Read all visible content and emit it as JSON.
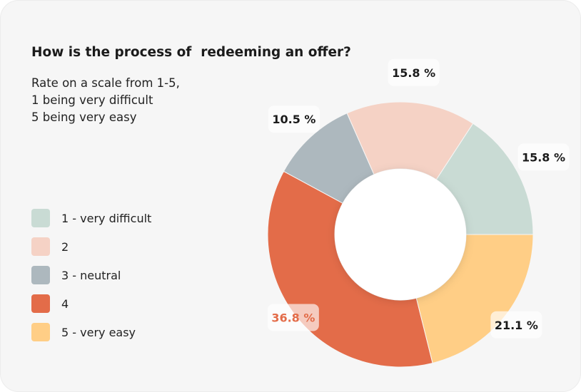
{
  "question": "How is the process of  redeeming an offer?",
  "instructions": [
    "Rate on a scale from 1-5,",
    "1 being very difficult",
    "5 being very easy"
  ],
  "chart_data": {
    "type": "pie",
    "donut": true,
    "title": "How is the process of  redeeming an offer?",
    "categories": [
      "1 - very difficult",
      "2",
      "3 - neutral",
      "4",
      "5 - very easy"
    ],
    "values": [
      15.8,
      15.8,
      10.5,
      36.8,
      21.1
    ],
    "labels": [
      "15.8 %",
      "15.8 %",
      "10.5 %",
      "36.8 %",
      "21.1 %"
    ],
    "colors": [
      "#c9dbd4",
      "#f5d2c5",
      "#adb8be",
      "#e36c49",
      "#ffce86"
    ],
    "label_colors": [
      "#1b1b1b",
      "#1b1b1b",
      "#1b1b1b",
      "#e36c49",
      "#1b1b1b"
    ],
    "legend_position": "left"
  }
}
